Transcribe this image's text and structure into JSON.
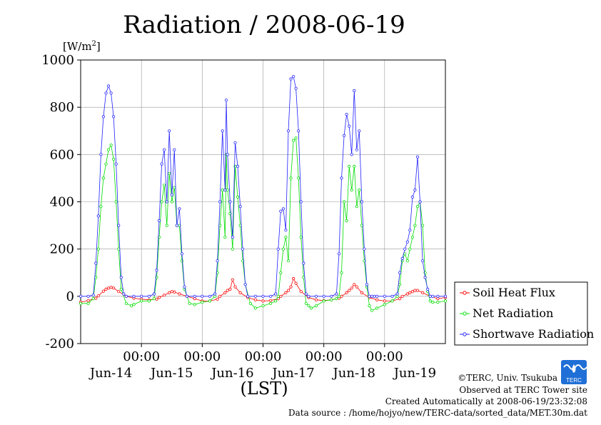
{
  "chart_data": {
    "type": "line",
    "title": "Radiation / 2008-06-19",
    "ylabel_unit": "[W/m",
    "ylabel_sup": "2",
    "ylabel_close": "]",
    "xlabel": "(LST)",
    "ylim": [
      -200,
      1000
    ],
    "yticks": [
      {
        "value": 1000,
        "label": "1000"
      },
      {
        "value": 800,
        "label": "800"
      },
      {
        "value": 600,
        "label": "600"
      },
      {
        "value": 400,
        "label": "400"
      },
      {
        "value": 200,
        "label": "200"
      },
      {
        "value": 0,
        "label": "0"
      },
      {
        "value": -200,
        "label": "-200"
      }
    ],
    "xlim_hours": [
      0,
      144
    ],
    "xticks_time": [
      {
        "hour": 24,
        "label": "00:00"
      },
      {
        "hour": 48,
        "label": "00:00"
      },
      {
        "hour": 72,
        "label": "00:00"
      },
      {
        "hour": 96,
        "label": "00:00"
      },
      {
        "hour": 120,
        "label": "00:00"
      }
    ],
    "xticks_date": [
      {
        "hour": 12,
        "label": "Jun-14"
      },
      {
        "hour": 36,
        "label": "Jun-15"
      },
      {
        "hour": 60,
        "label": "Jun-16"
      },
      {
        "hour": 84,
        "label": "Jun-17"
      },
      {
        "hour": 108,
        "label": "Jun-18"
      },
      {
        "hour": 132,
        "label": "Jun-19"
      }
    ],
    "grid": true,
    "legend_position": "bottom-right-outside",
    "series": [
      {
        "name": "Soil Heat Flux",
        "color": "#ff0000",
        "x": [
          0,
          3,
          6,
          7,
          9,
          10,
          11,
          12,
          13,
          15,
          18,
          21,
          24,
          27,
          30,
          31,
          33,
          35,
          36,
          37,
          39,
          42,
          45,
          48,
          51,
          54,
          55,
          57,
          58,
          59,
          60,
          61,
          63,
          66,
          69,
          72,
          75,
          78,
          79,
          81,
          82,
          83,
          84,
          85,
          87,
          90,
          93,
          96,
          99,
          102,
          103,
          105,
          106,
          107,
          108,
          109,
          111,
          114,
          117,
          120,
          123,
          126,
          127,
          129,
          130,
          131,
          132,
          133,
          135,
          138,
          141,
          144
        ],
        "values": [
          -25,
          -18,
          -8,
          2,
          22,
          30,
          35,
          38,
          35,
          20,
          0,
          -8,
          -12,
          -15,
          -12,
          -5,
          5,
          15,
          20,
          18,
          10,
          0,
          -10,
          -20,
          -20,
          -12,
          0,
          15,
          25,
          30,
          70,
          40,
          15,
          -5,
          -15,
          -20,
          -18,
          -10,
          0,
          15,
          25,
          40,
          75,
          55,
          20,
          -5,
          -15,
          -18,
          -15,
          -8,
          0,
          15,
          25,
          35,
          50,
          40,
          15,
          -5,
          -15,
          -20,
          -20,
          -10,
          0,
          10,
          15,
          20,
          25,
          25,
          15,
          0,
          -10,
          -5
        ]
      },
      {
        "name": "Net Radiation",
        "color": "#00dd00",
        "x": [
          0,
          3,
          5,
          6,
          7,
          8,
          9,
          10,
          11,
          12,
          13,
          14,
          15,
          16,
          18,
          20,
          21,
          24,
          27,
          29,
          30,
          31,
          32,
          33,
          34,
          35,
          36,
          37,
          38,
          39,
          40,
          41,
          43,
          45,
          48,
          51,
          53,
          54,
          55,
          56,
          57,
          57.5,
          58,
          59,
          60,
          61,
          62,
          63,
          64,
          65,
          67,
          69,
          72,
          75,
          77,
          78,
          79,
          80,
          81,
          82,
          83,
          84,
          85,
          86,
          87,
          88,
          89,
          90,
          91,
          93,
          96,
          99,
          101,
          102,
          103,
          104,
          105,
          106,
          107,
          108,
          109,
          110,
          111,
          112,
          113,
          114,
          115,
          117,
          120,
          123,
          125,
          126,
          127,
          128,
          129,
          130,
          131,
          132,
          133,
          134,
          135,
          136,
          137,
          138,
          139,
          141,
          144
        ],
        "values": [
          -30,
          -30,
          -10,
          80,
          200,
          380,
          500,
          560,
          620,
          640,
          580,
          400,
          200,
          30,
          -30,
          -40,
          -35,
          -20,
          -20,
          -10,
          80,
          250,
          400,
          470,
          300,
          520,
          400,
          460,
          300,
          300,
          150,
          30,
          -30,
          -35,
          -25,
          -20,
          0,
          100,
          300,
          450,
          250,
          600,
          450,
          350,
          200,
          550,
          420,
          300,
          150,
          50,
          -30,
          -50,
          -40,
          -30,
          -20,
          0,
          100,
          200,
          250,
          150,
          500,
          660,
          670,
          500,
          250,
          80,
          -30,
          -40,
          -50,
          -40,
          -20,
          -15,
          -10,
          0,
          100,
          400,
          320,
          550,
          450,
          550,
          380,
          450,
          300,
          150,
          40,
          -40,
          -60,
          -50,
          -35,
          -20,
          0,
          50,
          150,
          180,
          150,
          200,
          250,
          300,
          380,
          400,
          300,
          100,
          20,
          -20,
          -25,
          -25,
          -20
        ]
      },
      {
        "name": "Shortwave Radiation",
        "color": "#2222ff",
        "x": [
          0,
          3,
          5,
          6,
          7,
          8,
          9,
          10,
          11,
          12,
          13,
          14,
          15,
          16,
          17,
          18,
          21,
          24,
          27,
          29,
          30,
          31,
          32,
          33,
          34,
          35,
          36,
          37,
          38,
          39,
          40,
          41,
          42,
          45,
          48,
          51,
          53,
          54,
          55,
          56,
          57,
          57.5,
          58,
          59,
          60,
          61,
          62,
          63,
          64,
          65,
          66,
          69,
          72,
          75,
          77,
          78,
          79,
          80,
          81,
          82,
          83,
          84,
          85,
          86,
          87,
          88,
          89,
          90,
          93,
          96,
          99,
          101,
          102,
          103,
          104,
          105,
          106,
          107,
          108,
          109,
          110,
          111,
          112,
          113,
          114,
          115,
          116,
          117,
          120,
          123,
          125,
          126,
          127,
          128,
          129,
          130,
          131,
          132,
          133,
          134,
          135,
          136,
          137,
          138,
          139,
          141,
          144
        ],
        "values": [
          0,
          0,
          5,
          140,
          340,
          600,
          760,
          860,
          890,
          860,
          760,
          560,
          300,
          80,
          10,
          0,
          0,
          0,
          0,
          10,
          110,
          320,
          560,
          620,
          400,
          700,
          430,
          620,
          300,
          370,
          180,
          40,
          0,
          0,
          0,
          0,
          10,
          150,
          400,
          700,
          450,
          830,
          600,
          400,
          250,
          650,
          550,
          380,
          200,
          50,
          0,
          0,
          0,
          0,
          10,
          200,
          360,
          370,
          280,
          700,
          920,
          930,
          880,
          700,
          400,
          140,
          10,
          0,
          0,
          0,
          0,
          10,
          180,
          500,
          680,
          770,
          720,
          600,
          870,
          620,
          700,
          400,
          200,
          50,
          0,
          0,
          0,
          0,
          0,
          0,
          10,
          100,
          160,
          200,
          230,
          280,
          420,
          450,
          590,
          400,
          150,
          80,
          30,
          0,
          0,
          0,
          0
        ]
      }
    ]
  },
  "credits": {
    "copyright": "©TERC, Univ. Tsukuba",
    "observed": "Observed at TERC Tower site",
    "created": "Created Automatically at 2008-06-19/23:32:08",
    "source": "Data source : /home/hojyo/new/TERC-data/sorted_data/MET.30m.dat"
  },
  "logo": {
    "text": "TERC",
    "color": "#1f6fd6"
  }
}
